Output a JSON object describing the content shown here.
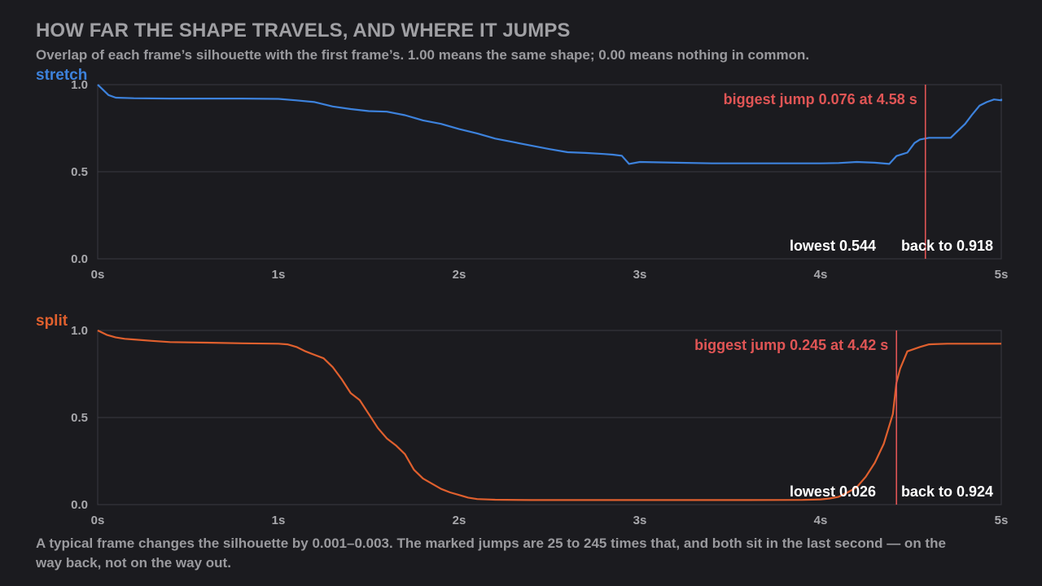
{
  "title": "HOW FAR THE SHAPE TRAVELS, AND WHERE IT JUMPS",
  "subtitle": "Overlap of each frame’s silhouette with the first frame’s. 1.00 means the same shape; 0.00 means nothing in common.",
  "footer": "A typical frame changes the silhouette by 0.001–0.003. The marked jumps are 25 to 245 times that, and both sit in the last second — on the way back, not on the way out.",
  "colors": {
    "background": "#1b1b1f",
    "grid": "#3a3a40",
    "stretch": "#3d82dc",
    "split": "#e0602e",
    "jump": "#e05555",
    "stat": "#ffffff"
  },
  "chart_data": [
    {
      "type": "line",
      "name": "stretch",
      "xlim": [
        0,
        5
      ],
      "ylim": [
        0,
        1
      ],
      "x_ticks": [
        0,
        1,
        2,
        3,
        4,
        5
      ],
      "x_tick_labels": [
        "0s",
        "1s",
        "2s",
        "3s",
        "4s",
        "5s"
      ],
      "y_ticks": [
        0,
        0.5,
        1
      ],
      "y_tick_labels": [
        "0.0",
        "0.5",
        "1.0"
      ],
      "grid": true,
      "jump": {
        "x": 4.58,
        "label": "biggest jump 0.076 at 4.58 s"
      },
      "lowest_label": "lowest 0.544",
      "back_label": "back to 0.918",
      "points": [
        [
          0,
          1.0
        ],
        [
          0.03,
          0.97
        ],
        [
          0.06,
          0.94
        ],
        [
          0.1,
          0.925
        ],
        [
          0.2,
          0.922
        ],
        [
          0.4,
          0.92
        ],
        [
          0.6,
          0.92
        ],
        [
          0.8,
          0.92
        ],
        [
          1.0,
          0.918
        ],
        [
          1.1,
          0.91
        ],
        [
          1.2,
          0.9
        ],
        [
          1.3,
          0.875
        ],
        [
          1.4,
          0.86
        ],
        [
          1.5,
          0.848
        ],
        [
          1.6,
          0.845
        ],
        [
          1.7,
          0.825
        ],
        [
          1.8,
          0.795
        ],
        [
          1.9,
          0.775
        ],
        [
          2.0,
          0.745
        ],
        [
          2.1,
          0.72
        ],
        [
          2.2,
          0.69
        ],
        [
          2.3,
          0.67
        ],
        [
          2.4,
          0.65
        ],
        [
          2.5,
          0.63
        ],
        [
          2.6,
          0.612
        ],
        [
          2.7,
          0.608
        ],
        [
          2.8,
          0.602
        ],
        [
          2.85,
          0.598
        ],
        [
          2.9,
          0.592
        ],
        [
          2.94,
          0.545
        ],
        [
          3.0,
          0.556
        ],
        [
          3.2,
          0.552
        ],
        [
          3.4,
          0.548
        ],
        [
          3.6,
          0.548
        ],
        [
          3.8,
          0.548
        ],
        [
          4.0,
          0.548
        ],
        [
          4.1,
          0.55
        ],
        [
          4.2,
          0.556
        ],
        [
          4.3,
          0.552
        ],
        [
          4.38,
          0.545
        ],
        [
          4.42,
          0.59
        ],
        [
          4.45,
          0.6
        ],
        [
          4.48,
          0.61
        ],
        [
          4.52,
          0.665
        ],
        [
          4.55,
          0.685
        ],
        [
          4.6,
          0.695
        ],
        [
          4.66,
          0.695
        ],
        [
          4.72,
          0.695
        ],
        [
          4.76,
          0.735
        ],
        [
          4.8,
          0.775
        ],
        [
          4.84,
          0.83
        ],
        [
          4.88,
          0.88
        ],
        [
          4.92,
          0.9
        ],
        [
          4.96,
          0.915
        ],
        [
          5.0,
          0.91
        ],
        [
          5.1,
          0.91
        ],
        [
          5.2,
          0.915
        ],
        [
          5.25,
          0.918
        ]
      ]
    },
    {
      "type": "line",
      "name": "split",
      "xlim": [
        0,
        5
      ],
      "ylim": [
        0,
        1
      ],
      "x_ticks": [
        0,
        1,
        2,
        3,
        4,
        5
      ],
      "x_tick_labels": [
        "0s",
        "1s",
        "2s",
        "3s",
        "4s",
        "5s"
      ],
      "y_ticks": [
        0,
        0.5,
        1
      ],
      "y_tick_labels": [
        "0.0",
        "0.5",
        "1.0"
      ],
      "grid": true,
      "jump": {
        "x": 4.42,
        "label": "biggest jump 0.245 at 4.42 s"
      },
      "lowest_label": "lowest 0.026",
      "back_label": "back to 0.924",
      "points": [
        [
          0,
          1.0
        ],
        [
          0.05,
          0.975
        ],
        [
          0.1,
          0.96
        ],
        [
          0.15,
          0.952
        ],
        [
          0.2,
          0.948
        ],
        [
          0.3,
          0.94
        ],
        [
          0.4,
          0.933
        ],
        [
          0.6,
          0.93
        ],
        [
          0.8,
          0.926
        ],
        [
          1.0,
          0.924
        ],
        [
          1.05,
          0.92
        ],
        [
          1.1,
          0.905
        ],
        [
          1.15,
          0.88
        ],
        [
          1.2,
          0.86
        ],
        [
          1.25,
          0.84
        ],
        [
          1.3,
          0.79
        ],
        [
          1.35,
          0.72
        ],
        [
          1.4,
          0.64
        ],
        [
          1.45,
          0.6
        ],
        [
          1.5,
          0.52
        ],
        [
          1.55,
          0.44
        ],
        [
          1.6,
          0.38
        ],
        [
          1.65,
          0.34
        ],
        [
          1.7,
          0.29
        ],
        [
          1.75,
          0.2
        ],
        [
          1.8,
          0.15
        ],
        [
          1.85,
          0.12
        ],
        [
          1.9,
          0.09
        ],
        [
          1.95,
          0.07
        ],
        [
          2.0,
          0.055
        ],
        [
          2.05,
          0.04
        ],
        [
          2.1,
          0.032
        ],
        [
          2.2,
          0.028
        ],
        [
          2.4,
          0.026
        ],
        [
          2.8,
          0.026
        ],
        [
          3.2,
          0.026
        ],
        [
          3.6,
          0.026
        ],
        [
          3.9,
          0.027
        ],
        [
          4.0,
          0.03
        ],
        [
          4.05,
          0.035
        ],
        [
          4.1,
          0.045
        ],
        [
          4.15,
          0.07
        ],
        [
          4.2,
          0.1
        ],
        [
          4.25,
          0.16
        ],
        [
          4.3,
          0.24
        ],
        [
          4.35,
          0.35
        ],
        [
          4.4,
          0.52
        ],
        [
          4.42,
          0.7
        ],
        [
          4.44,
          0.78
        ],
        [
          4.48,
          0.88
        ],
        [
          4.55,
          0.905
        ],
        [
          4.6,
          0.92
        ],
        [
          4.7,
          0.924
        ],
        [
          5.0,
          0.924
        ],
        [
          5.25,
          0.924
        ]
      ]
    }
  ]
}
